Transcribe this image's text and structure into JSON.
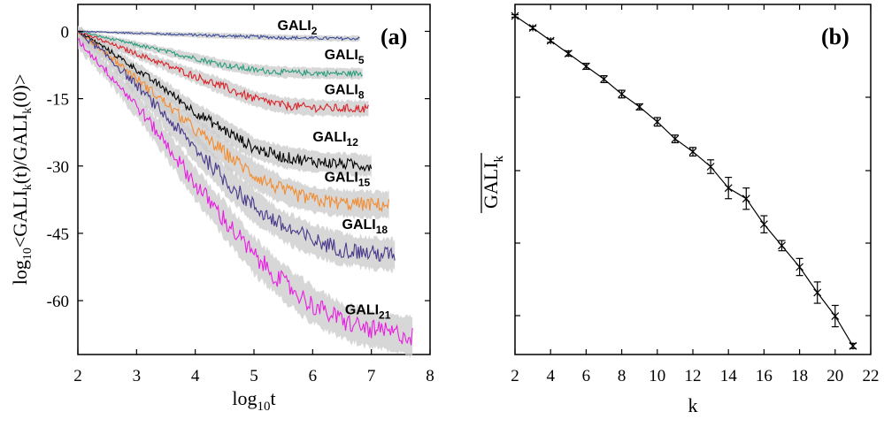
{
  "chart_data": [
    {
      "type": "line",
      "panel_label": "(a)",
      "xlabel": "log",
      "xlabel_sub": "10",
      "xlabel_tail": "t",
      "ylabel": "log10<GALIk(t)/GALIk(0)>",
      "ylabel_parts": [
        "log",
        "10",
        "<GALI",
        "k",
        "(t)/GALI",
        "k",
        "(0)>"
      ],
      "xlim": [
        2,
        8
      ],
      "ylim": [
        -72,
        6
      ],
      "xticks": [
        "2",
        "3",
        "4",
        "5",
        "6",
        "7",
        "8"
      ],
      "yticks": [
        "0",
        "-15",
        "-30",
        "-45",
        "-60"
      ],
      "ytick_values": [
        0,
        -15,
        -30,
        -45,
        -60
      ],
      "series": [
        {
          "name": "GALI2",
          "label_main": "GALI",
          "label_sub": "2",
          "color": "#3b4b99",
          "x": [
            2.0,
            2.5,
            3.0,
            3.5,
            4.0,
            4.5,
            5.0,
            5.5,
            6.0,
            6.5,
            6.8
          ],
          "y": [
            0,
            -0.2,
            -0.4,
            -0.6,
            -0.8,
            -1.0,
            -1.2,
            -1.4,
            -1.5,
            -1.6,
            -1.6
          ]
        },
        {
          "name": "GALI5",
          "label_main": "GALI",
          "label_sub": "5",
          "color": "#2a9d7c",
          "x": [
            2.0,
            2.5,
            3.0,
            3.5,
            4.0,
            4.5,
            5.0,
            5.5,
            6.0,
            6.5,
            6.85
          ],
          "y": [
            0,
            -1.5,
            -3.0,
            -4.5,
            -6.0,
            -7.5,
            -8.6,
            -9.1,
            -9.3,
            -9.4,
            -9.4
          ]
        },
        {
          "name": "GALI8",
          "label_main": "GALI",
          "label_sub": "8",
          "color": "#d8232a",
          "x": [
            2.0,
            2.5,
            3.0,
            3.5,
            4.0,
            4.5,
            5.0,
            5.5,
            6.0,
            6.5,
            6.95
          ],
          "y": [
            0,
            -2.5,
            -5.0,
            -7.5,
            -10.0,
            -12.5,
            -15.0,
            -16.5,
            -17.0,
            -17.2,
            -17.2
          ]
        },
        {
          "name": "GALI12",
          "label_main": "GALI",
          "label_sub": "12",
          "color": "#000000",
          "x": [
            2.0,
            2.5,
            3.0,
            3.5,
            4.0,
            4.5,
            5.0,
            5.5,
            6.0,
            6.5,
            7.0
          ],
          "y": [
            0,
            -4.0,
            -8.5,
            -13.0,
            -18.0,
            -22.0,
            -26.0,
            -28.0,
            -29.0,
            -29.5,
            -30.0
          ]
        },
        {
          "name": "GALI15",
          "label_main": "GALI",
          "label_sub": "15",
          "color": "#f28c30",
          "x": [
            2.0,
            2.5,
            3.0,
            3.5,
            4.0,
            4.5,
            5.0,
            5.5,
            6.0,
            6.5,
            7.0,
            7.3
          ],
          "y": [
            0,
            -5.0,
            -10.5,
            -16.0,
            -22.0,
            -27.0,
            -32.0,
            -35.5,
            -37.5,
            -38.3,
            -38.6,
            -38.6
          ]
        },
        {
          "name": "GALI18",
          "label_main": "GALI",
          "label_sub": "18",
          "color": "#4b3a8a",
          "x": [
            2.0,
            2.5,
            3.0,
            3.5,
            4.0,
            4.5,
            5.0,
            5.5,
            6.0,
            6.5,
            7.0,
            7.4
          ],
          "y": [
            0,
            -5.5,
            -12.0,
            -19.0,
            -26.0,
            -33.0,
            -39.0,
            -43.5,
            -46.5,
            -48.5,
            -49.5,
            -49.8
          ]
        },
        {
          "name": "GALI21",
          "label_main": "GALI",
          "label_sub": "21",
          "color": "#e81ee0",
          "x": [
            2.0,
            2.5,
            3.0,
            3.5,
            4.0,
            4.5,
            5.0,
            5.5,
            6.0,
            6.5,
            7.0,
            7.5,
            7.7
          ],
          "y": [
            -2.0,
            -9.0,
            -16.5,
            -25.0,
            -34.0,
            -42.0,
            -50.0,
            -56.0,
            -61.0,
            -64.5,
            -66.5,
            -67.5,
            -68.0
          ]
        }
      ],
      "label_positions": [
        {
          "x": 5.4,
          "y": 0.3
        },
        {
          "x": 6.2,
          "y": -6.2
        },
        {
          "x": 6.2,
          "y": -14.0
        },
        {
          "x": 6.0,
          "y": -24.5
        },
        {
          "x": 6.2,
          "y": -33.5
        },
        {
          "x": 6.5,
          "y": -44.0
        },
        {
          "x": 6.55,
          "y": -63.0
        }
      ]
    },
    {
      "type": "line",
      "panel_label": "(b)",
      "xlabel": "k",
      "ylabel": "GALIk",
      "ylabel_main": "GALI",
      "ylabel_sub": "k",
      "ylabel_overline": true,
      "xlim": [
        2,
        22
      ],
      "ylim": [
        -72,
        6
      ],
      "xticks": [
        "2",
        "4",
        "6",
        "8",
        "10",
        "12",
        "14",
        "16",
        "18",
        "20",
        "22"
      ],
      "yticks": [],
      "marker": "x",
      "color": "#000000",
      "x": [
        2,
        3,
        4,
        5,
        6,
        7,
        8,
        9,
        10,
        11,
        12,
        13,
        14,
        15,
        16,
        17,
        18,
        19,
        20,
        21
      ],
      "y": [
        0.3,
        -2.5,
        -5.5,
        -8.5,
        -11.5,
        -14.5,
        -18.0,
        -21.0,
        -24.5,
        -28.5,
        -31.5,
        -35.0,
        -40.0,
        -42.5,
        -48.5,
        -53.5,
        -58.5,
        -64.5,
        -70.0,
        -77.0
      ],
      "errors": [
        0.3,
        0.4,
        0.4,
        0.6,
        0.7,
        0.8,
        0.9,
        0.7,
        1.0,
        0.9,
        1.0,
        1.6,
        2.5,
        2.5,
        2.0,
        1.2,
        2.0,
        2.5,
        2.5,
        0.6
      ],
      "ylim_b": [
        -79,
        3
      ]
    }
  ]
}
